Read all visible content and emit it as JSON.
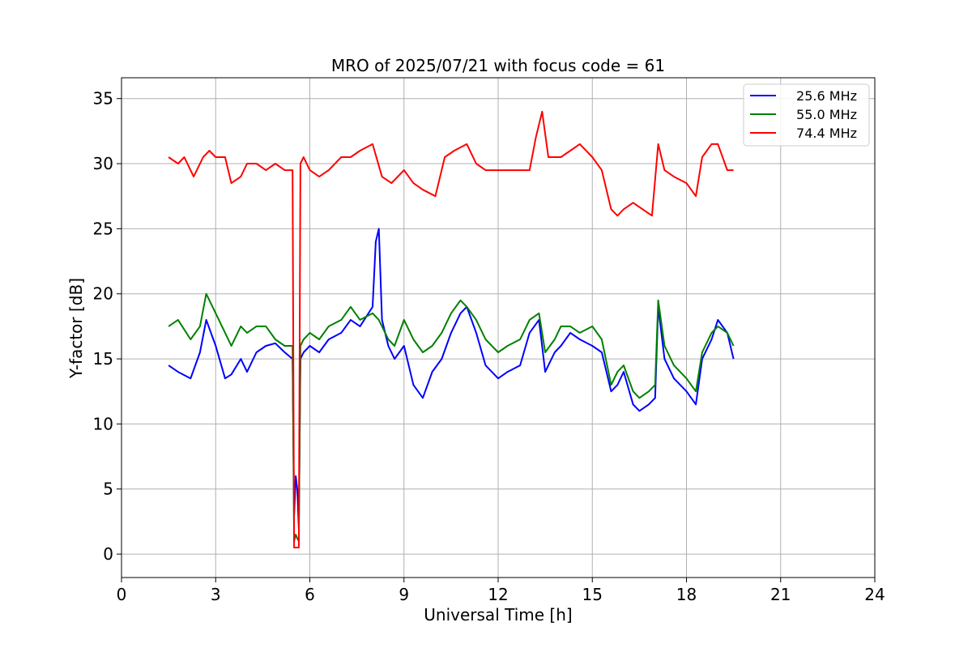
{
  "chart_data": {
    "type": "line",
    "title": "MRO of 2025/07/21 with focus code = 61",
    "xlabel": "Universal Time [h]",
    "ylabel": "Y-factor [dB]",
    "xlim": [
      0,
      24
    ],
    "ylim": [
      -1.8,
      36.6
    ],
    "xticks": [
      0,
      3,
      6,
      9,
      12,
      15,
      18,
      21,
      24
    ],
    "yticks": [
      0,
      5,
      10,
      15,
      20,
      25,
      30,
      35
    ],
    "grid": true,
    "legend_position": "top-right",
    "series": [
      {
        "name": "25.6 MHz",
        "color": "#0000ff",
        "x": [
          1.5,
          1.8,
          2.2,
          2.5,
          2.7,
          3.0,
          3.3,
          3.5,
          3.8,
          4.0,
          4.3,
          4.6,
          4.9,
          5.2,
          5.45,
          5.5,
          5.55,
          5.6,
          5.65,
          5.7,
          5.8,
          6.0,
          6.3,
          6.6,
          7.0,
          7.3,
          7.6,
          8.0,
          8.1,
          8.2,
          8.3,
          8.5,
          8.7,
          9.0,
          9.3,
          9.6,
          9.9,
          10.2,
          10.5,
          10.8,
          11.0,
          11.3,
          11.6,
          12.0,
          12.3,
          12.7,
          13.0,
          13.3,
          13.5,
          13.8,
          14.0,
          14.3,
          14.6,
          15.0,
          15.3,
          15.6,
          15.8,
          16.0,
          16.3,
          16.5,
          16.8,
          17.0,
          17.1,
          17.3,
          17.6,
          18.0,
          18.3,
          18.5,
          18.8,
          19.0,
          19.3,
          19.5
        ],
        "y": [
          14.5,
          14.0,
          13.5,
          15.5,
          18.0,
          16.0,
          13.5,
          13.8,
          15.0,
          14.0,
          15.5,
          16.0,
          16.2,
          15.5,
          15.0,
          3.0,
          6.0,
          5.0,
          2.0,
          15.0,
          15.5,
          16.0,
          15.5,
          16.5,
          17.0,
          18.0,
          17.5,
          19.0,
          24.0,
          25.0,
          18.0,
          16.0,
          15.0,
          16.0,
          13.0,
          12.0,
          14.0,
          15.0,
          17.0,
          18.5,
          19.0,
          17.0,
          14.5,
          13.5,
          14.0,
          14.5,
          17.0,
          18.0,
          14.0,
          15.5,
          16.0,
          17.0,
          16.5,
          16.0,
          15.5,
          12.5,
          13.0,
          14.0,
          11.5,
          11.0,
          11.5,
          12.0,
          19.0,
          15.0,
          13.5,
          12.5,
          11.5,
          15.0,
          16.5,
          18.0,
          17.0,
          15.0
        ]
      },
      {
        "name": "55.0 MHz",
        "color": "#008000",
        "x": [
          1.5,
          1.8,
          2.2,
          2.5,
          2.7,
          3.0,
          3.3,
          3.5,
          3.8,
          4.0,
          4.3,
          4.6,
          4.9,
          5.2,
          5.45,
          5.5,
          5.55,
          5.6,
          5.65,
          5.7,
          5.8,
          6.0,
          6.3,
          6.6,
          7.0,
          7.3,
          7.6,
          8.0,
          8.2,
          8.5,
          8.7,
          9.0,
          9.3,
          9.6,
          9.9,
          10.2,
          10.5,
          10.8,
          11.0,
          11.3,
          11.6,
          12.0,
          12.3,
          12.7,
          13.0,
          13.3,
          13.5,
          13.8,
          14.0,
          14.3,
          14.6,
          15.0,
          15.3,
          15.6,
          15.8,
          16.0,
          16.3,
          16.5,
          16.8,
          17.0,
          17.1,
          17.3,
          17.6,
          18.0,
          18.3,
          18.5,
          18.8,
          19.0,
          19.3,
          19.5
        ],
        "y": [
          17.5,
          18.0,
          16.5,
          17.5,
          20.0,
          18.5,
          17.0,
          16.0,
          17.5,
          17.0,
          17.5,
          17.5,
          16.5,
          16.0,
          16.0,
          1.0,
          1.5,
          1.2,
          1.0,
          16.0,
          16.5,
          17.0,
          16.5,
          17.5,
          18.0,
          19.0,
          18.0,
          18.5,
          18.0,
          16.5,
          16.0,
          18.0,
          16.5,
          15.5,
          16.0,
          17.0,
          18.5,
          19.5,
          19.0,
          18.0,
          16.5,
          15.5,
          16.0,
          16.5,
          18.0,
          18.5,
          15.5,
          16.5,
          17.5,
          17.5,
          17.0,
          17.5,
          16.5,
          13.0,
          14.0,
          14.5,
          12.5,
          12.0,
          12.5,
          13.0,
          19.5,
          16.0,
          14.5,
          13.5,
          12.5,
          15.5,
          17.0,
          17.5,
          17.0,
          16.0
        ]
      },
      {
        "name": "74.4 MHz",
        "color": "#ff0000",
        "x": [
          1.5,
          1.8,
          2.0,
          2.3,
          2.6,
          2.8,
          3.0,
          3.3,
          3.5,
          3.8,
          4.0,
          4.3,
          4.6,
          4.9,
          5.2,
          5.45,
          5.5,
          5.55,
          5.6,
          5.65,
          5.7,
          5.8,
          6.0,
          6.3,
          6.6,
          7.0,
          7.3,
          7.6,
          8.0,
          8.3,
          8.6,
          9.0,
          9.3,
          9.6,
          10.0,
          10.3,
          10.6,
          11.0,
          11.3,
          11.6,
          12.0,
          12.3,
          12.7,
          13.0,
          13.2,
          13.4,
          13.6,
          14.0,
          14.3,
          14.6,
          15.0,
          15.3,
          15.6,
          15.8,
          16.0,
          16.3,
          16.6,
          16.9,
          17.1,
          17.3,
          17.6,
          18.0,
          18.3,
          18.5,
          18.8,
          19.0,
          19.3,
          19.5
        ],
        "y": [
          30.5,
          30.0,
          30.5,
          29.0,
          30.5,
          31.0,
          30.5,
          30.5,
          28.5,
          29.0,
          30.0,
          30.0,
          29.5,
          30.0,
          29.5,
          29.5,
          0.5,
          0.5,
          0.5,
          0.5,
          30.0,
          30.5,
          29.5,
          29.0,
          29.5,
          30.5,
          30.5,
          31.0,
          31.5,
          29.0,
          28.5,
          29.5,
          28.5,
          28.0,
          27.5,
          30.5,
          31.0,
          31.5,
          30.0,
          29.5,
          29.5,
          29.5,
          29.5,
          29.5,
          32.0,
          34.0,
          30.5,
          30.5,
          31.0,
          31.5,
          30.5,
          29.5,
          26.5,
          26.0,
          26.5,
          27.0,
          26.5,
          26.0,
          31.5,
          29.5,
          29.0,
          28.5,
          27.5,
          30.5,
          31.5,
          31.5,
          29.5,
          29.5
        ]
      }
    ]
  }
}
